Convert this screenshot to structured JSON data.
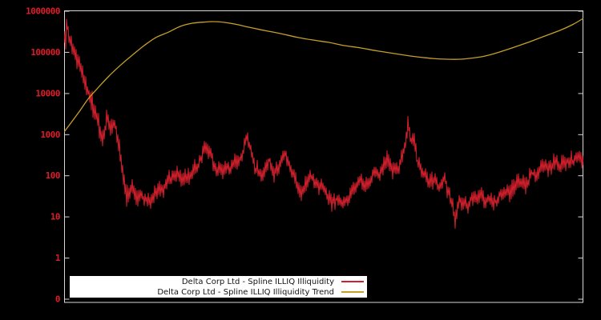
{
  "window": {
    "background": "#000000"
  },
  "colors": {
    "frame": "#d8d8d8",
    "tick_label": "#dd1c2a",
    "illiq_series": "#d2202c",
    "trend_series": "#c6a028",
    "legend_bg": "#ffffff",
    "legend_text": "#141414"
  },
  "y_axis": {
    "labels": [
      "1000000",
      "100000",
      "10000",
      "1000",
      "100",
      "10",
      "1",
      "0"
    ]
  },
  "legend": {
    "entries": [
      {
        "label": "Delta Corp Ltd - Spline ILLIQ Illiquidity",
        "color_key": "illiq_series"
      },
      {
        "label": "Delta Corp Ltd - Spline ILLIQ Illiquidity Trend",
        "color_key": "trend_series"
      }
    ]
  },
  "chart_data": {
    "type": "line",
    "title": "",
    "xlabel": "",
    "ylabel": "",
    "y_scale": "log",
    "ylim": [
      0.1,
      1000000
    ],
    "x_tick_labels": [],
    "grid": false,
    "legend_position": "bottom-center-inside",
    "series": [
      {
        "name": "Delta Corp Ltd - Spline ILLIQ Illiquidity",
        "style": "noisy",
        "anchors": [
          [
            0.003,
            250000,
            0.3
          ],
          [
            0.006,
            490000,
            0.25
          ],
          [
            0.011,
            160000,
            0.3
          ],
          [
            0.019,
            81000,
            0.28
          ],
          [
            0.028,
            42000,
            0.25
          ],
          [
            0.037,
            27000,
            0.25
          ],
          [
            0.046,
            12500,
            0.28
          ],
          [
            0.056,
            4400,
            0.3
          ],
          [
            0.065,
            2300,
            0.3
          ],
          [
            0.074,
            740,
            0.22
          ],
          [
            0.082,
            2300,
            0.25
          ],
          [
            0.09,
            1300,
            0.22
          ],
          [
            0.099,
            1600,
            0.25
          ],
          [
            0.106,
            740,
            0.22
          ],
          [
            0.113,
            120,
            0.25
          ],
          [
            0.12,
            26,
            0.3
          ],
          [
            0.13,
            44,
            0.25
          ],
          [
            0.139,
            34,
            0.22
          ],
          [
            0.15,
            44,
            0.22
          ],
          [
            0.16,
            24,
            0.25
          ],
          [
            0.17,
            37,
            0.22
          ],
          [
            0.181,
            44,
            0.2
          ],
          [
            0.193,
            63,
            0.2
          ],
          [
            0.204,
            83,
            0.22
          ],
          [
            0.216,
            110,
            0.22
          ],
          [
            0.228,
            76,
            0.2
          ],
          [
            0.241,
            90,
            0.2
          ],
          [
            0.252,
            170,
            0.2
          ],
          [
            0.262,
            265,
            0.2
          ],
          [
            0.273,
            380,
            0.2
          ],
          [
            0.282,
            265,
            0.2
          ],
          [
            0.292,
            125,
            0.2
          ],
          [
            0.302,
            100,
            0.2
          ],
          [
            0.313,
            140,
            0.2
          ],
          [
            0.324,
            175,
            0.2
          ],
          [
            0.335,
            220,
            0.2
          ],
          [
            0.344,
            345,
            0.2
          ],
          [
            0.353,
            680,
            0.22
          ],
          [
            0.36,
            520,
            0.2
          ],
          [
            0.367,
            170,
            0.2
          ],
          [
            0.377,
            130,
            0.2
          ],
          [
            0.386,
            170,
            0.2
          ],
          [
            0.395,
            290,
            0.2
          ],
          [
            0.404,
            140,
            0.2
          ],
          [
            0.415,
            230,
            0.2
          ],
          [
            0.426,
            450,
            0.22
          ],
          [
            0.437,
            185,
            0.2
          ],
          [
            0.448,
            76,
            0.2
          ],
          [
            0.458,
            40,
            0.2
          ],
          [
            0.469,
            60,
            0.2
          ],
          [
            0.48,
            79,
            0.2
          ],
          [
            0.491,
            55,
            0.2
          ],
          [
            0.503,
            34,
            0.2
          ],
          [
            0.515,
            24,
            0.22
          ],
          [
            0.526,
            34,
            0.2
          ],
          [
            0.537,
            27,
            0.2
          ],
          [
            0.549,
            32,
            0.2
          ],
          [
            0.562,
            53,
            0.2
          ],
          [
            0.572,
            72,
            0.2
          ],
          [
            0.583,
            60,
            0.2
          ],
          [
            0.594,
            83,
            0.2
          ],
          [
            0.605,
            100,
            0.2
          ],
          [
            0.616,
            140,
            0.22
          ],
          [
            0.623,
            220,
            0.22
          ],
          [
            0.633,
            140,
            0.2
          ],
          [
            0.642,
            175,
            0.2
          ],
          [
            0.651,
            330,
            0.22
          ],
          [
            0.659,
            1150,
            0.25
          ],
          [
            0.663,
            2100,
            0.22
          ],
          [
            0.668,
            850,
            0.22
          ],
          [
            0.674,
            1000,
            0.22
          ],
          [
            0.68,
            290,
            0.2
          ],
          [
            0.69,
            170,
            0.2
          ],
          [
            0.7,
            105,
            0.2
          ],
          [
            0.711,
            76,
            0.2
          ],
          [
            0.722,
            55,
            0.2
          ],
          [
            0.731,
            69,
            0.2
          ],
          [
            0.741,
            35,
            0.22
          ],
          [
            0.753,
            10,
            0.22
          ],
          [
            0.762,
            24,
            0.2
          ],
          [
            0.773,
            17,
            0.2
          ],
          [
            0.784,
            26,
            0.2
          ],
          [
            0.795,
            19,
            0.2
          ],
          [
            0.805,
            35,
            0.2
          ],
          [
            0.815,
            23,
            0.2
          ],
          [
            0.826,
            17,
            0.2
          ],
          [
            0.836,
            24,
            0.2
          ],
          [
            0.847,
            31,
            0.2
          ],
          [
            0.858,
            44,
            0.2
          ],
          [
            0.869,
            55,
            0.2
          ],
          [
            0.88,
            90,
            0.2
          ],
          [
            0.89,
            69,
            0.2
          ],
          [
            0.901,
            125,
            0.2
          ],
          [
            0.912,
            95,
            0.2
          ],
          [
            0.923,
            140,
            0.2
          ],
          [
            0.934,
            110,
            0.2
          ],
          [
            0.943,
            185,
            0.2
          ],
          [
            0.954,
            135,
            0.2
          ],
          [
            0.965,
            185,
            0.2
          ],
          [
            0.975,
            240,
            0.2
          ],
          [
            0.986,
            275,
            0.2
          ],
          [
            0.995,
            330,
            0.22
          ],
          [
            1.0,
            290,
            0.2
          ]
        ]
      },
      {
        "name": "Delta Corp Ltd - Spline ILLIQ Illiquidity Trend",
        "style": "smooth",
        "points": [
          [
            0.0,
            1160
          ],
          [
            0.015,
            2070
          ],
          [
            0.031,
            3900
          ],
          [
            0.046,
            7300
          ],
          [
            0.062,
            12400
          ],
          [
            0.085,
            25500
          ],
          [
            0.108,
            48000
          ],
          [
            0.131,
            85000
          ],
          [
            0.154,
            146000
          ],
          [
            0.177,
            230000
          ],
          [
            0.201,
            310000
          ],
          [
            0.224,
            430000
          ],
          [
            0.247,
            510000
          ],
          [
            0.27,
            545000
          ],
          [
            0.289,
            560000
          ],
          [
            0.309,
            535000
          ],
          [
            0.332,
            478000
          ],
          [
            0.355,
            410000
          ],
          [
            0.386,
            340000
          ],
          [
            0.417,
            285000
          ],
          [
            0.448,
            233000
          ],
          [
            0.478,
            200000
          ],
          [
            0.509,
            175000
          ],
          [
            0.54,
            146000
          ],
          [
            0.571,
            128000
          ],
          [
            0.602,
            109000
          ],
          [
            0.633,
            95000
          ],
          [
            0.663,
            83000
          ],
          [
            0.687,
            76000
          ],
          [
            0.71,
            71000
          ],
          [
            0.736,
            68000
          ],
          [
            0.764,
            68000
          ],
          [
            0.787,
            73000
          ],
          [
            0.81,
            81000
          ],
          [
            0.833,
            97000
          ],
          [
            0.864,
            130000
          ],
          [
            0.895,
            178000
          ],
          [
            0.926,
            250000
          ],
          [
            0.957,
            350000
          ],
          [
            0.98,
            478000
          ],
          [
            1.0,
            670000
          ]
        ]
      }
    ]
  }
}
